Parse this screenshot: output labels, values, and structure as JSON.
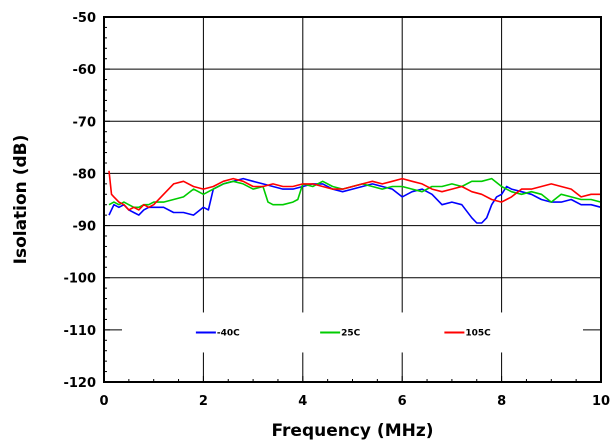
{
  "chart_data": {
    "type": "line",
    "title": "",
    "xlabel": "Frequency (MHz)",
    "ylabel": "Isolation (dB)",
    "xlim": [
      0,
      10
    ],
    "ylim": [
      -120,
      -50
    ],
    "xticks": [
      0,
      2,
      4,
      6,
      8,
      10
    ],
    "yticks": [
      -50,
      -60,
      -70,
      -80,
      -90,
      -100,
      -110,
      -120
    ],
    "grid": true,
    "legend_placement": "bottom inside, horizontal",
    "series": [
      {
        "name": "-40C",
        "color": "#0000ff",
        "x": [
          0.1,
          0.2,
          0.3,
          0.4,
          0.5,
          0.6,
          0.7,
          0.8,
          0.9,
          1.0,
          1.2,
          1.4,
          1.6,
          1.8,
          2.0,
          2.1,
          2.2,
          2.4,
          2.6,
          2.8,
          3.0,
          3.2,
          3.4,
          3.6,
          3.8,
          4.0,
          4.2,
          4.4,
          4.6,
          4.8,
          5.0,
          5.2,
          5.4,
          5.6,
          5.8,
          6.0,
          6.2,
          6.4,
          6.6,
          6.8,
          7.0,
          7.2,
          7.4,
          7.5,
          7.6,
          7.7,
          7.8,
          7.9,
          8.0,
          8.1,
          8.2,
          8.4,
          8.6,
          8.8,
          9.0,
          9.2,
          9.4,
          9.6,
          9.8,
          10.0
        ],
        "y": [
          -88,
          -86,
          -86.5,
          -86,
          -87,
          -87.5,
          -88,
          -87,
          -86.5,
          -86.5,
          -86.5,
          -87.5,
          -87.5,
          -88,
          -86.5,
          -87,
          -83,
          -82,
          -81.5,
          -81,
          -81.5,
          -82,
          -82.5,
          -83,
          -83,
          -82.5,
          -82,
          -82,
          -83,
          -83.5,
          -83,
          -82.5,
          -82,
          -82.5,
          -83,
          -84.5,
          -83.5,
          -83,
          -84,
          -86,
          -85.5,
          -86,
          -88.5,
          -89.5,
          -89.5,
          -88.5,
          -86,
          -84.5,
          -84,
          -82.5,
          -83,
          -83.5,
          -84,
          -85,
          -85.5,
          -85.5,
          -85,
          -86,
          -86,
          -86.5
        ]
      },
      {
        "name": "25C",
        "color": "#00cc00",
        "x": [
          0.1,
          0.2,
          0.3,
          0.4,
          0.5,
          0.6,
          0.7,
          0.8,
          0.9,
          1.0,
          1.2,
          1.4,
          1.6,
          1.8,
          2.0,
          2.2,
          2.4,
          2.6,
          2.8,
          3.0,
          3.2,
          3.3,
          3.4,
          3.6,
          3.8,
          3.9,
          4.0,
          4.2,
          4.4,
          4.6,
          4.8,
          5.0,
          5.2,
          5.4,
          5.6,
          5.8,
          6.0,
          6.2,
          6.4,
          6.6,
          6.8,
          7.0,
          7.2,
          7.4,
          7.6,
          7.8,
          8.0,
          8.2,
          8.4,
          8.6,
          8.8,
          9.0,
          9.2,
          9.4,
          9.6,
          9.8,
          10.0
        ],
        "y": [
          -86,
          -85.5,
          -86,
          -85.5,
          -86,
          -86.5,
          -86.5,
          -86,
          -86,
          -85.5,
          -85.5,
          -85,
          -84.5,
          -83,
          -84,
          -83,
          -82,
          -81.5,
          -82,
          -83,
          -82.5,
          -85.5,
          -86,
          -86,
          -85.5,
          -85,
          -82,
          -82.5,
          -81.5,
          -82.5,
          -83,
          -82.5,
          -82,
          -82.5,
          -83,
          -82.5,
          -82.5,
          -83,
          -83.5,
          -82.5,
          -82.5,
          -82,
          -82.5,
          -81.5,
          -81.5,
          -81,
          -82.5,
          -83.5,
          -84,
          -83.5,
          -84,
          -85.5,
          -84,
          -84.5,
          -85,
          -85,
          -85.5
        ]
      },
      {
        "name": "105C",
        "color": "#ff0000",
        "x": [
          0.1,
          0.15,
          0.2,
          0.3,
          0.4,
          0.5,
          0.6,
          0.7,
          0.8,
          0.9,
          1.0,
          1.2,
          1.4,
          1.6,
          1.8,
          2.0,
          2.2,
          2.4,
          2.6,
          2.8,
          3.0,
          3.2,
          3.4,
          3.6,
          3.8,
          4.0,
          4.2,
          4.4,
          4.6,
          4.8,
          5.0,
          5.2,
          5.4,
          5.6,
          5.8,
          6.0,
          6.2,
          6.4,
          6.6,
          6.8,
          7.0,
          7.2,
          7.4,
          7.6,
          7.8,
          8.0,
          8.2,
          8.4,
          8.6,
          8.8,
          9.0,
          9.2,
          9.4,
          9.6,
          9.8,
          10.0
        ],
        "y": [
          -79.5,
          -84,
          -84.5,
          -85.5,
          -86,
          -87,
          -86.5,
          -87,
          -86,
          -86.5,
          -86,
          -84,
          -82,
          -81.5,
          -82.5,
          -83,
          -82.5,
          -81.5,
          -81,
          -81.5,
          -82.5,
          -82.5,
          -82,
          -82.5,
          -82.5,
          -82,
          -82,
          -82.5,
          -83,
          -83,
          -82.5,
          -82,
          -81.5,
          -82,
          -81.5,
          -81,
          -81.5,
          -82,
          -83,
          -83.5,
          -83,
          -82.5,
          -83.5,
          -84,
          -85,
          -85.5,
          -84.5,
          -83,
          -83,
          -82.5,
          -82,
          -82.5,
          -83,
          -84.5,
          -84,
          -84
        ]
      }
    ]
  }
}
